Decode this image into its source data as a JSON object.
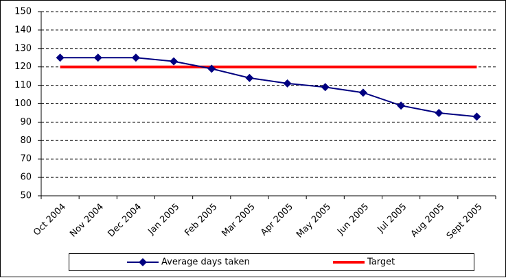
{
  "chart_data": {
    "type": "line",
    "categories": [
      "Oct 2004",
      "Nov 2004",
      "Dec 2004",
      "Jan 2005",
      "Feb 2005",
      "Mar 2005",
      "Apr 2005",
      "May 2005",
      "Jun 2005",
      "Jul 2005",
      "Aug 2005",
      "Sept 2005"
    ],
    "series": [
      {
        "name": "Average days taken",
        "color": "#000080",
        "marker": "diamond",
        "values": [
          125,
          125,
          125,
          123,
          119,
          114,
          111,
          109,
          106,
          99,
          95,
          93
        ]
      },
      {
        "name": "Target",
        "color": "#ff0000",
        "marker": "none",
        "values": [
          120,
          120,
          120,
          120,
          120,
          120,
          120,
          120,
          120,
          120,
          120,
          120
        ]
      }
    ],
    "ylim": [
      50,
      150
    ],
    "yticks": [
      50,
      60,
      70,
      80,
      90,
      100,
      110,
      120,
      130,
      140,
      150
    ],
    "grid": true,
    "legend": "bottom"
  }
}
